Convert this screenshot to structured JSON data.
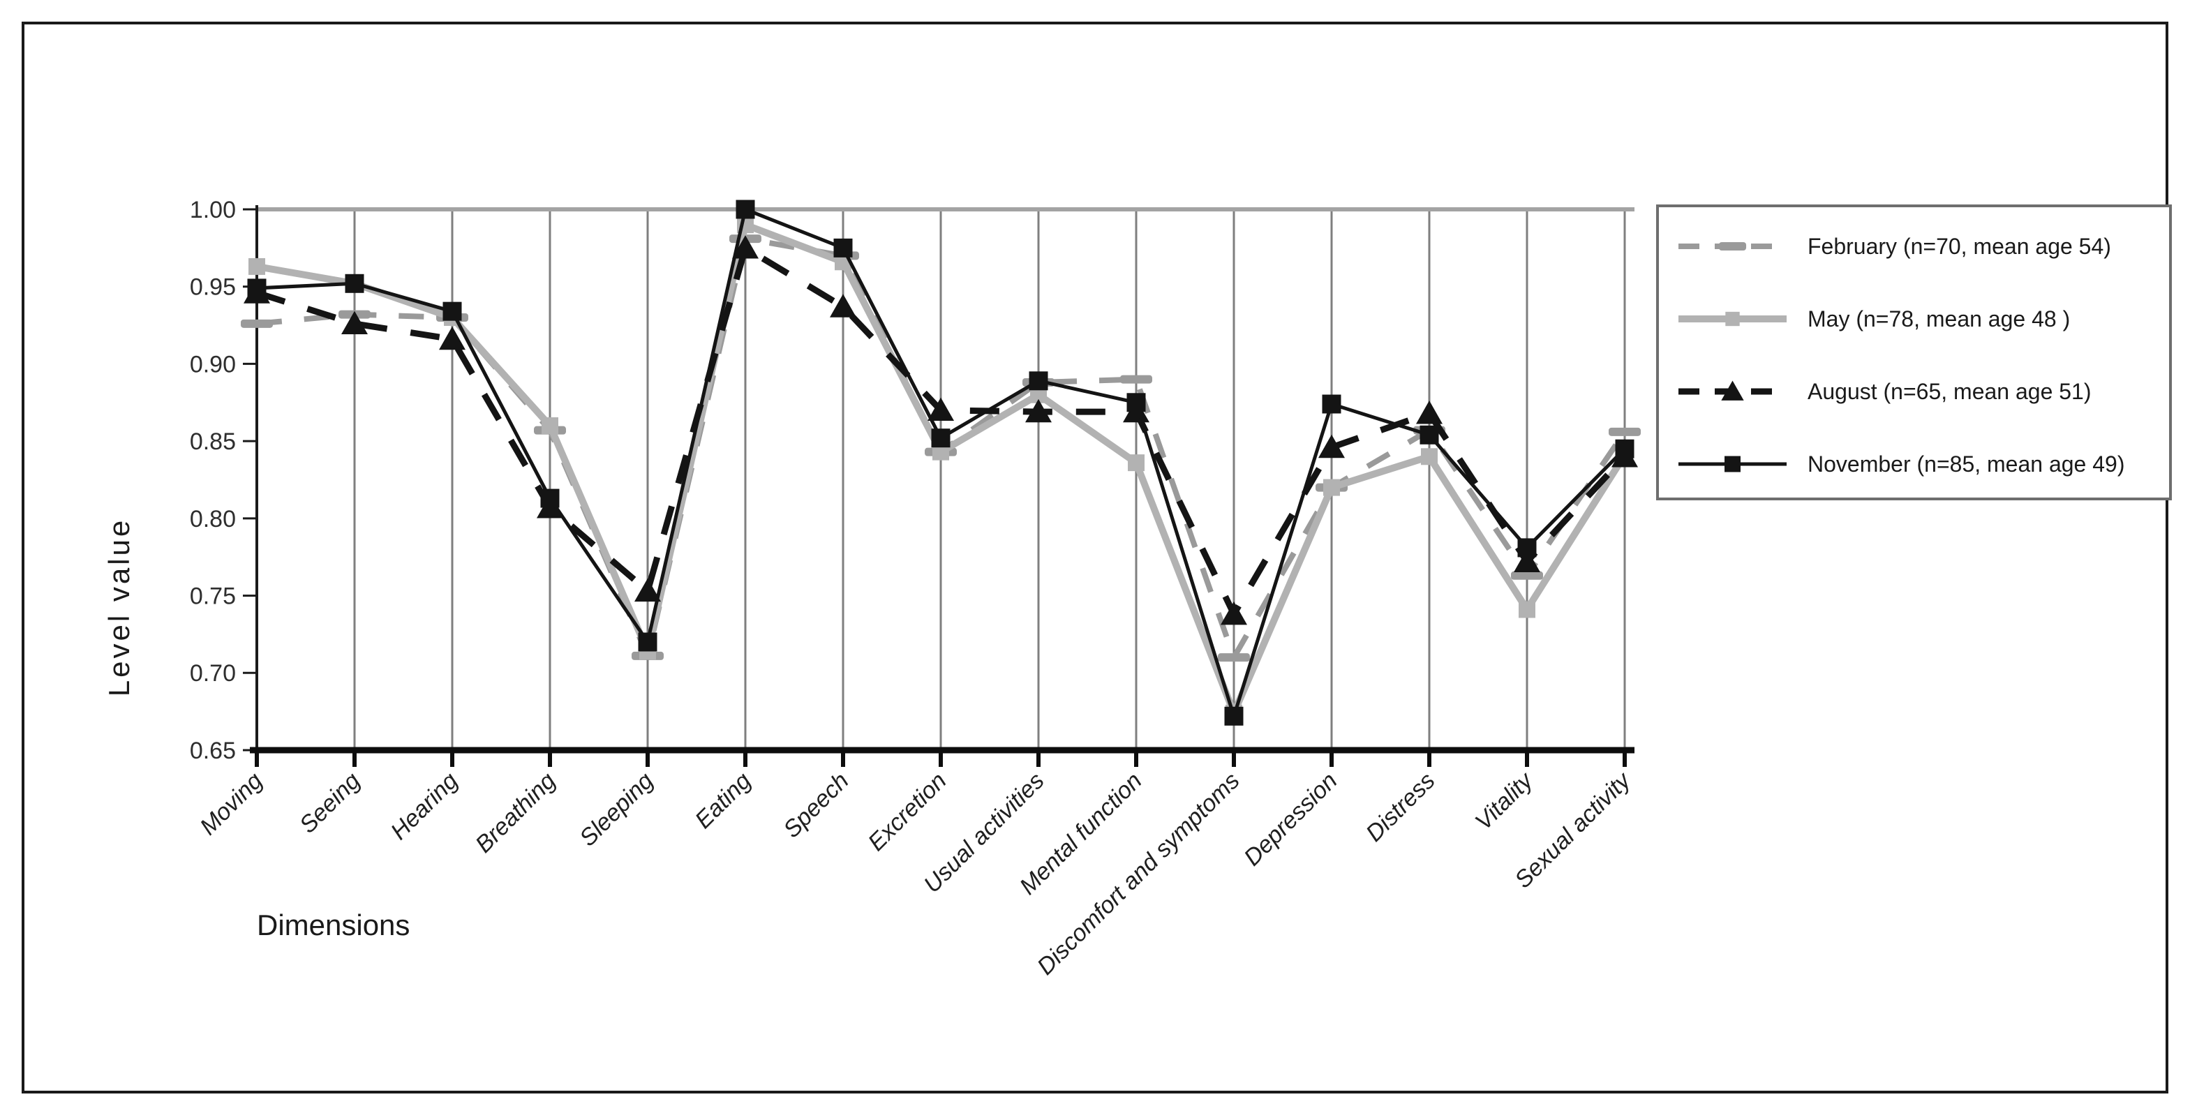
{
  "chart_data": {
    "type": "line",
    "title": "",
    "xlabel": "Dimensions",
    "ylabel": "Level value",
    "ylim": [
      0.65,
      1.0
    ],
    "ytick_step": 0.05,
    "ytick_labels": [
      "1.00",
      "0.95",
      "0.90",
      "0.85",
      "0.80",
      "0.75",
      "0.70",
      "0.65"
    ],
    "grid": "vertical-only",
    "legend_position": "right",
    "categories": [
      "Moving",
      "Seeing",
      "Hearing",
      "Breathing",
      "Sleeping",
      "Eating",
      "Speech",
      "Excretion",
      "Usual activities",
      "Mental function",
      "Discomfort and symptoms",
      "Depression",
      "Distress",
      "Vitality",
      "Sexual activity"
    ],
    "series": [
      {
        "name": "February (n=70, mean age 54)",
        "color": "#9a9a9a",
        "line": "dashed",
        "marker": "dash",
        "values": [
          0.926,
          0.932,
          0.93,
          0.857,
          0.711,
          0.981,
          0.97,
          0.843,
          0.888,
          0.89,
          0.71,
          0.82,
          0.857,
          0.763,
          0.856
        ]
      },
      {
        "name": "May (n=78, mean age 48 )",
        "color": "#b2b2b2",
        "line": "solid",
        "marker": "square",
        "values": [
          0.963,
          0.952,
          0.93,
          0.86,
          0.714,
          0.99,
          0.966,
          0.843,
          0.88,
          0.836,
          0.674,
          0.82,
          0.84,
          0.741,
          0.841
        ]
      },
      {
        "name": "August (n=65, mean age 51)",
        "color": "#141414",
        "line": "dashed",
        "marker": "triangle",
        "values": [
          0.946,
          0.926,
          0.916,
          0.807,
          0.753,
          0.975,
          0.937,
          0.87,
          0.869,
          0.869,
          0.738,
          0.846,
          0.868,
          0.772,
          0.84
        ]
      },
      {
        "name": "November (n=85, mean age 49)",
        "color": "#141414",
        "line": "solid",
        "marker": "square",
        "values": [
          0.949,
          0.952,
          0.934,
          0.813,
          0.72,
          1.0,
          0.975,
          0.852,
          0.889,
          0.875,
          0.672,
          0.874,
          0.854,
          0.781,
          0.845
        ]
      }
    ]
  }
}
